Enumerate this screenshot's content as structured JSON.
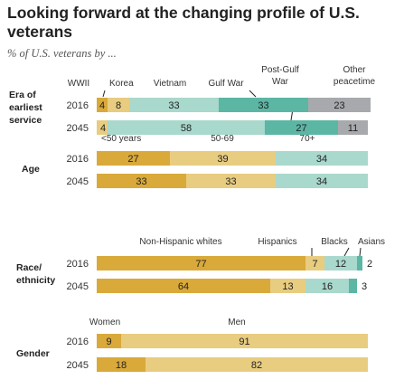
{
  "title": "Looking forward at the changing profile of U.S. veterans",
  "subtitle": "% of U.S. veterans by ...",
  "colors": {
    "gold": "#d9a93a",
    "tan": "#e8cc80",
    "light_teal": "#a9d8cc",
    "teal": "#5bb6a4",
    "dark_teal": "#2e7f6b",
    "gray": "#a7a9ac",
    "slate": "#4f7987"
  },
  "chart_data": [
    {
      "type": "bar",
      "orientation": "horizontal-stacked",
      "panel": "Era of earliest service",
      "categories": [
        "2016",
        "2045"
      ],
      "series": [
        {
          "name": "WWII",
          "values": [
            4,
            0
          ],
          "color": "gold"
        },
        {
          "name": "Korea",
          "values": [
            8,
            4
          ],
          "color": "tan"
        },
        {
          "name": "Vietnam",
          "values": [
            33,
            58
          ],
          "color": "light_teal"
        },
        {
          "name": "Gulf War",
          "values": [
            33,
            27
          ],
          "color": "teal"
        },
        {
          "name": "Post-Gulf War",
          "values": [
            0,
            0
          ],
          "color": "dark_teal"
        },
        {
          "name": "Other peacetime",
          "values": [
            23,
            11
          ],
          "color": "gray"
        }
      ],
      "segment_labels": [
        [
          {
            "series": 0,
            "label": "4"
          },
          {
            "series": 1,
            "label": "8"
          },
          {
            "series": 2,
            "label": "33"
          },
          {
            "series": 3,
            "label": "33"
          },
          {
            "series": 5,
            "label": "23"
          }
        ],
        [
          {
            "series": 1,
            "label": "4"
          },
          {
            "series": 2,
            "label": "58"
          },
          {
            "series": 3,
            "label": "27"
          },
          {
            "series": 5,
            "label": "11"
          }
        ]
      ]
    },
    {
      "type": "bar",
      "orientation": "horizontal-stacked",
      "panel": "Age",
      "categories": [
        "2016",
        "2045"
      ],
      "series": [
        {
          "name": "<50 years",
          "values": [
            27,
            33
          ],
          "color": "gold"
        },
        {
          "name": "50-69",
          "values": [
            39,
            33
          ],
          "color": "tan"
        },
        {
          "name": "70+",
          "values": [
            34,
            34
          ],
          "color": "light_teal"
        }
      ]
    },
    {
      "type": "bar",
      "orientation": "horizontal-stacked",
      "panel": "Race/ ethnicity",
      "categories": [
        "2016",
        "2045"
      ],
      "series": [
        {
          "name": "Non-Hispanic whites",
          "values": [
            77,
            64
          ],
          "color": "gold"
        },
        {
          "name": "Hispanics",
          "values": [
            7,
            13
          ],
          "color": "tan"
        },
        {
          "name": "Blacks",
          "values": [
            12,
            16
          ],
          "color": "light_teal"
        },
        {
          "name": "Asians",
          "values": [
            2,
            3
          ],
          "color": "teal"
        }
      ]
    },
    {
      "type": "bar",
      "orientation": "horizontal-stacked",
      "panel": "Gender",
      "categories": [
        "2016",
        "2045"
      ],
      "series": [
        {
          "name": "Women",
          "values": [
            9,
            18
          ],
          "color": "gold"
        },
        {
          "name": "Men",
          "values": [
            91,
            82
          ],
          "color": "tan"
        }
      ]
    }
  ]
}
